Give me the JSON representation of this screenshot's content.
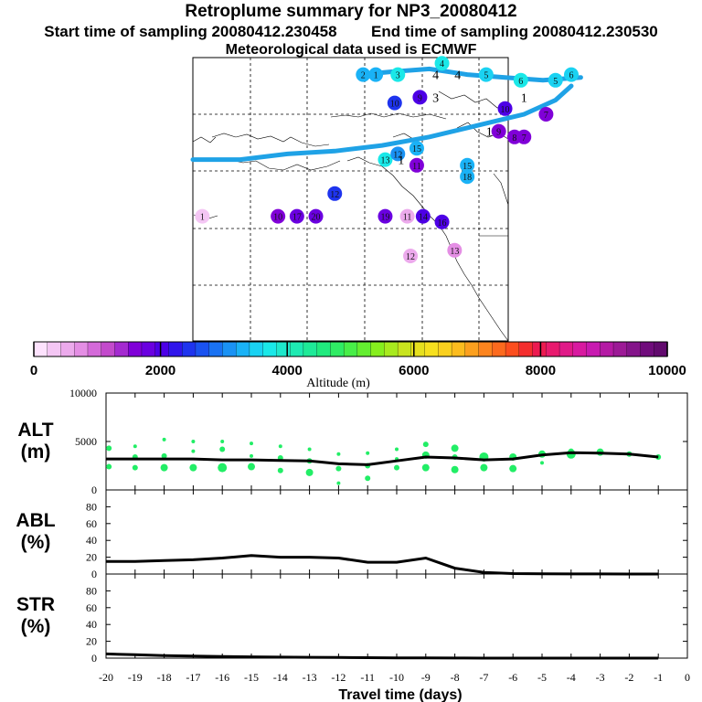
{
  "header": {
    "title": "Retroplume summary for NP3_20080412",
    "start_label": "Start time of sampling 20080412.230458",
    "end_label": "End time of sampling 20080412.230530",
    "met_label": "Meteorological data used is ECMWF"
  },
  "colors": {
    "trajectory_line": "#1fa2e6",
    "alt_points": "#22ee66",
    "line": "#000000"
  },
  "map": {
    "clusters": [
      {
        "label": "1",
        "lon": -72,
        "lat": 57,
        "alt": 400
      },
      {
        "label": "10",
        "lon": -48,
        "lat": 57,
        "alt": 1600
      },
      {
        "label": "17",
        "lon": -42,
        "lat": 57,
        "alt": 1800
      },
      {
        "label": "20",
        "lon": -36,
        "lat": 57,
        "alt": 1800
      },
      {
        "label": "12",
        "lon": -30,
        "lat": 61,
        "alt": 2500
      },
      {
        "label": "13",
        "lon": -14,
        "lat": 67,
        "alt": 3700
      },
      {
        "label": "12",
        "lon": -10,
        "lat": 68,
        "alt": 3100
      },
      {
        "label": "15",
        "lon": -4,
        "lat": 69,
        "alt": 3400
      },
      {
        "label": "19",
        "lon": -14,
        "lat": 57,
        "alt": 1800
      },
      {
        "label": "11",
        "lon": -7,
        "lat": 57,
        "alt": 600
      },
      {
        "label": "14",
        "lon": -2,
        "lat": 57,
        "alt": 2000
      },
      {
        "label": "16",
        "lon": 4,
        "lat": 56,
        "alt": 2100
      },
      {
        "label": "12",
        "lon": -6,
        "lat": 50,
        "alt": 500
      },
      {
        "label": "13",
        "lon": 8,
        "lat": 51,
        "alt": 800
      },
      {
        "label": "15",
        "lon": 12,
        "lat": 66,
        "alt": 3200
      },
      {
        "label": "18",
        "lon": 12,
        "lat": 64,
        "alt": 3400
      },
      {
        "label": "11",
        "lon": -4,
        "lat": 66,
        "alt": 1500
      },
      {
        "label": "9",
        "lon": 22,
        "lat": 72,
        "alt": 1500
      },
      {
        "label": "8",
        "lon": 27,
        "lat": 71,
        "alt": 1500
      },
      {
        "label": "7",
        "lon": 30,
        "lat": 71,
        "alt": 1700
      },
      {
        "label": "2",
        "lon": -21,
        "lat": 82,
        "alt": 3400
      },
      {
        "label": "1",
        "lon": -17,
        "lat": 82,
        "alt": 3400
      },
      {
        "label": "3",
        "lon": -10,
        "lat": 82,
        "alt": 3700
      },
      {
        "label": "10",
        "lon": -11,
        "lat": 77,
        "alt": 2400
      },
      {
        "label": "9",
        "lon": -3,
        "lat": 78,
        "alt": 2100
      },
      {
        "label": "4",
        "lon": 4,
        "lat": 84,
        "alt": 3800
      },
      {
        "label": "5",
        "lon": 18,
        "lat": 82,
        "alt": 3600
      },
      {
        "label": "6",
        "lon": 29,
        "lat": 81,
        "alt": 3700
      },
      {
        "label": "5",
        "lon": 40,
        "lat": 81,
        "alt": 3600
      },
      {
        "label": "6",
        "lon": 45,
        "lat": 82,
        "alt": 3500
      },
      {
        "label": "10",
        "lon": 24,
        "lat": 76,
        "alt": 2000
      },
      {
        "label": "7",
        "lon": 37,
        "lat": 75,
        "alt": 1700
      }
    ],
    "path_labels": [
      {
        "label": "1",
        "lon": -9,
        "lat": 67
      },
      {
        "label": "1",
        "lon": 19,
        "lat": 72
      },
      {
        "label": "1",
        "lon": 30,
        "lat": 78
      },
      {
        "label": "4",
        "lon": 2,
        "lat": 82
      },
      {
        "label": "3",
        "lon": 2,
        "lat": 78
      },
      {
        "label": "4",
        "lon": 9,
        "lat": 82
      }
    ]
  },
  "colorbar": {
    "ticks": [
      "0",
      "2000",
      "4000",
      "6000",
      "8000",
      "10000"
    ],
    "label": "Altitude (m)",
    "colors": [
      "#fde2fd",
      "#f4c6f4",
      "#ecaaec",
      "#e48ee4",
      "#d46ad9",
      "#c34acc",
      "#a42ad0",
      "#8000d8",
      "#6a00e0",
      "#4d00e6",
      "#3015eb",
      "#1e34ee",
      "#1a52f0",
      "#1a72f2",
      "#1a92f4",
      "#1ab2f6",
      "#1ad2f2",
      "#1ae8e8",
      "#1ee8cc",
      "#1eeab2",
      "#1eea98",
      "#20ea7e",
      "#30ec64",
      "#48ee48",
      "#64ee30",
      "#86ee1e",
      "#a8ea1e",
      "#c8e41e",
      "#e6e01e",
      "#f6e01e",
      "#fad01e",
      "#fcbc1e",
      "#fca01e",
      "#fc841e",
      "#fc6a1e",
      "#fc4e1e",
      "#f42e2e",
      "#ec1a50",
      "#e81a6e",
      "#e01a88",
      "#d81aa0",
      "#c81ab0",
      "#b41aa4",
      "#9c1a96",
      "#84148a",
      "#700c7c",
      "#620a6e"
    ]
  },
  "chart_data": [
    {
      "type": "scatter",
      "panel": "ALT",
      "ylabel_line1": "ALT",
      "ylabel_line2": "(m)",
      "ylim": [
        0,
        10000
      ],
      "yticks": [
        "10000",
        "5000",
        "0"
      ],
      "yticks_values": [
        10000,
        5000,
        0
      ],
      "points": [
        {
          "x": -19.9,
          "y": 2400,
          "s": 3
        },
        {
          "x": -19.9,
          "y": 4300,
          "s": 3
        },
        {
          "x": -19,
          "y": 2300,
          "s": 3
        },
        {
          "x": -19,
          "y": 3400,
          "s": 3
        },
        {
          "x": -19,
          "y": 4500,
          "s": 2
        },
        {
          "x": -18,
          "y": 2300,
          "s": 4
        },
        {
          "x": -18,
          "y": 3500,
          "s": 3
        },
        {
          "x": -18,
          "y": 5200,
          "s": 2
        },
        {
          "x": -17,
          "y": 2300,
          "s": 4
        },
        {
          "x": -17,
          "y": 4000,
          "s": 2
        },
        {
          "x": -17,
          "y": 5000,
          "s": 2
        },
        {
          "x": -16,
          "y": 2300,
          "s": 5
        },
        {
          "x": -16,
          "y": 4200,
          "s": 3
        },
        {
          "x": -16,
          "y": 5000,
          "s": 2
        },
        {
          "x": -15,
          "y": 2400,
          "s": 4
        },
        {
          "x": -15,
          "y": 3500,
          "s": 2
        },
        {
          "x": -15,
          "y": 4800,
          "s": 2
        },
        {
          "x": -14,
          "y": 2000,
          "s": 3
        },
        {
          "x": -14,
          "y": 3300,
          "s": 3
        },
        {
          "x": -14,
          "y": 4500,
          "s": 2
        },
        {
          "x": -13,
          "y": 1800,
          "s": 4
        },
        {
          "x": -13,
          "y": 3000,
          "s": 3
        },
        {
          "x": -13,
          "y": 4200,
          "s": 2
        },
        {
          "x": -12,
          "y": 700,
          "s": 2
        },
        {
          "x": -12,
          "y": 2200,
          "s": 3
        },
        {
          "x": -12,
          "y": 3700,
          "s": 2
        },
        {
          "x": -11,
          "y": 1200,
          "s": 3
        },
        {
          "x": -11,
          "y": 2500,
          "s": 3
        },
        {
          "x": -11,
          "y": 3800,
          "s": 2
        },
        {
          "x": -10,
          "y": 2300,
          "s": 3
        },
        {
          "x": -10,
          "y": 3200,
          "s": 2
        },
        {
          "x": -10,
          "y": 4200,
          "s": 2
        },
        {
          "x": -9,
          "y": 2300,
          "s": 4
        },
        {
          "x": -9,
          "y": 3600,
          "s": 4
        },
        {
          "x": -9,
          "y": 4700,
          "s": 3
        },
        {
          "x": -8,
          "y": 2100,
          "s": 4
        },
        {
          "x": -8,
          "y": 3400,
          "s": 3
        },
        {
          "x": -8,
          "y": 4300,
          "s": 4
        },
        {
          "x": -7,
          "y": 2300,
          "s": 4
        },
        {
          "x": -7,
          "y": 3400,
          "s": 5
        },
        {
          "x": -6,
          "y": 2200,
          "s": 4
        },
        {
          "x": -6,
          "y": 3400,
          "s": 4
        },
        {
          "x": -5,
          "y": 2800,
          "s": 2
        },
        {
          "x": -5,
          "y": 3700,
          "s": 4
        },
        {
          "x": -4,
          "y": 3700,
          "s": 5
        },
        {
          "x": -4,
          "y": 4000,
          "s": 3
        },
        {
          "x": -3,
          "y": 3900,
          "s": 4
        },
        {
          "x": -2,
          "y": 3700,
          "s": 3
        },
        {
          "x": -1,
          "y": 3400,
          "s": 3
        }
      ],
      "mean_line": {
        "x": [
          -20,
          -19,
          -18,
          -17,
          -16,
          -15,
          -14,
          -13,
          -12,
          -11,
          -10,
          -9,
          -8,
          -7,
          -6,
          -5,
          -4,
          -3,
          -2,
          -1
        ],
        "y": [
          3200,
          3200,
          3200,
          3200,
          3100,
          3100,
          3050,
          3000,
          2700,
          2600,
          3000,
          3400,
          3300,
          3100,
          3200,
          3600,
          3850,
          3800,
          3700,
          3400
        ]
      }
    },
    {
      "type": "line",
      "panel": "ABL",
      "ylabel_line1": "ABL",
      "ylabel_line2": "(%)",
      "ylim": [
        0,
        100
      ],
      "yticks": [
        "80",
        "60",
        "40",
        "20",
        "0"
      ],
      "yticks_values": [
        80,
        60,
        40,
        20,
        0
      ],
      "x": [
        -20,
        -19,
        -18,
        -17,
        -16,
        -15,
        -14,
        -13,
        -12,
        -11,
        -10,
        -9,
        -8,
        -7,
        -6,
        -5,
        -4,
        -3,
        -2,
        -1
      ],
      "y": [
        15,
        15,
        16,
        17,
        19,
        22,
        20,
        20,
        19,
        14,
        14,
        19,
        7,
        2,
        0.5,
        0.2,
        0.1,
        0.1,
        0,
        0
      ]
    },
    {
      "type": "line",
      "panel": "STR",
      "ylabel_line1": "STR",
      "ylabel_line2": "(%)",
      "ylim": [
        0,
        100
      ],
      "yticks": [
        "80",
        "60",
        "40",
        "20",
        "0"
      ],
      "yticks_values": [
        80,
        60,
        40,
        20,
        0
      ],
      "x": [
        -20,
        -19,
        -18,
        -17,
        -16,
        -15,
        -14,
        -13,
        -12,
        -11,
        -10,
        -9,
        -8,
        -7,
        -6,
        -5,
        -4,
        -3,
        -2,
        -1
      ],
      "y": [
        5,
        4,
        3,
        2.5,
        2,
        1.5,
        1.2,
        1,
        0.8,
        0.5,
        0.3,
        0.2,
        0.1,
        0,
        0,
        0,
        0,
        0,
        0,
        0
      ]
    }
  ],
  "xaxis": {
    "ticks": [
      "-20",
      "-19",
      "-18",
      "-17",
      "-16",
      "-15",
      "-14",
      "-13",
      "-12",
      "-11",
      "-10",
      "-9",
      "-8",
      "-7",
      "-6",
      "-5",
      "-4",
      "-3",
      "-2",
      "-1",
      "0"
    ],
    "tick_values": [
      -20,
      -19,
      -18,
      -17,
      -16,
      -15,
      -14,
      -13,
      -12,
      -11,
      -10,
      -9,
      -8,
      -7,
      -6,
      -5,
      -4,
      -3,
      -2,
      -1,
      0
    ],
    "label": "Travel time (days)",
    "xlim": [
      -20,
      0
    ]
  }
}
